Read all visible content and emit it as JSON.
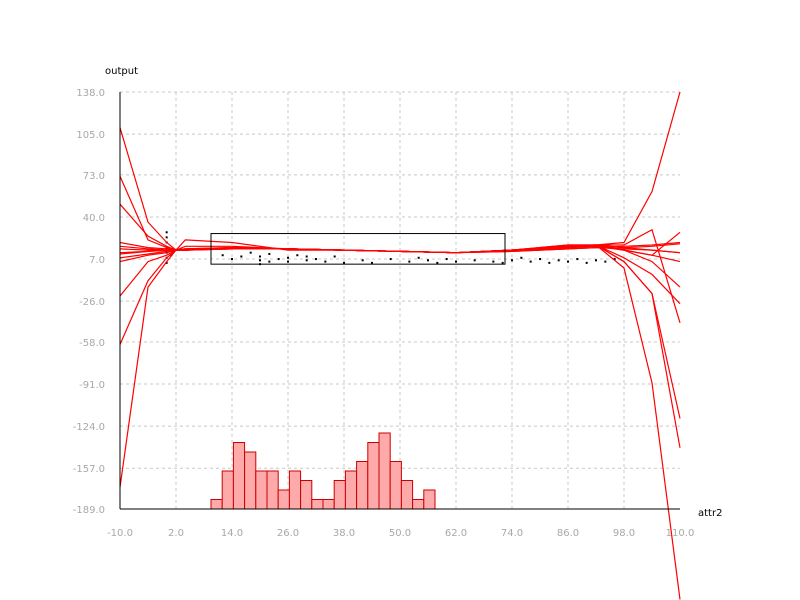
{
  "chart_data": {
    "type": "line",
    "x_axis_label": "attr2",
    "y_axis_label": "output",
    "x_ticks": [
      "-10.0",
      "2.0",
      "14.0",
      "26.0",
      "38.0",
      "50.0",
      "62.0",
      "74.0",
      "86.0",
      "98.0",
      "110.0"
    ],
    "y_ticks": [
      "138.0",
      "105.0",
      "73.0",
      "40.0",
      "7.0",
      "-26.0",
      "-58.0",
      "-91.0",
      "-124.0",
      "-157.0",
      "-189.0"
    ],
    "xlim": [
      -10,
      110
    ],
    "ylim": [
      -189,
      138
    ],
    "grid": true,
    "colors": {
      "line": "#ff0000",
      "bar_fill": "#ffaaaa",
      "bar_stroke": "#cc0000",
      "points": "#000000",
      "grid": "#c8c8c8"
    },
    "x_points": [
      -10,
      -4,
      0,
      2,
      4,
      14,
      26,
      38,
      50,
      62,
      74,
      86,
      92,
      98,
      104,
      110
    ],
    "series": [
      {
        "values": [
          110,
          36,
          20,
          14,
          14,
          16,
          15,
          14,
          13,
          12,
          14,
          17,
          18,
          14,
          5,
          -15
        ]
      },
      {
        "values": [
          72,
          22,
          16,
          14,
          14,
          16,
          15,
          14,
          13,
          12,
          14,
          17,
          18,
          8,
          -5,
          -28
        ]
      },
      {
        "values": [
          20,
          16,
          15,
          14,
          14,
          16,
          15,
          14,
          13,
          12,
          14,
          17,
          18,
          16,
          14,
          12
        ]
      },
      {
        "values": [
          17,
          15,
          14,
          14,
          15,
          16,
          15,
          14,
          13,
          12,
          14,
          16,
          17,
          16,
          17,
          19
        ]
      },
      {
        "values": [
          11,
          13,
          14,
          14,
          15,
          15,
          15,
          14,
          13,
          12,
          13,
          15,
          16,
          15,
          14,
          12
        ]
      },
      {
        "values": [
          8,
          11,
          13,
          14,
          14,
          15,
          15,
          14,
          13,
          12,
          13,
          15,
          16,
          17,
          18,
          20
        ]
      },
      {
        "values": [
          5,
          10,
          12,
          14,
          14,
          15,
          15,
          14,
          13,
          12,
          14,
          16,
          17,
          14,
          10,
          5
        ]
      },
      {
        "values": [
          -22,
          5,
          10,
          14,
          22,
          20,
          14,
          14,
          13,
          12,
          14,
          17,
          18,
          14,
          10,
          28
        ]
      },
      {
        "values": [
          -60,
          -10,
          8,
          14,
          17,
          17,
          15,
          14,
          13,
          12,
          14,
          17,
          18,
          18,
          30,
          -43
        ]
      },
      {
        "values": [
          -172,
          -15,
          5,
          14,
          15,
          16,
          15,
          14,
          13,
          12,
          14,
          18,
          18,
          5,
          -20,
          -118
        ]
      },
      {
        "values": [
          50,
          25,
          17,
          14,
          14,
          16,
          15,
          14,
          13,
          12,
          14,
          18,
          18,
          20,
          60,
          138
        ]
      },
      {
        "values": [
          15,
          14,
          14,
          14,
          14,
          16,
          15,
          14,
          13,
          12,
          14,
          16,
          18,
          5,
          -20,
          -141
        ]
      },
      {
        "values": [
          12,
          13,
          14,
          14,
          14,
          15,
          15,
          14,
          13,
          12,
          14,
          16,
          18,
          0,
          -90,
          -260
        ]
      }
    ],
    "histogram": {
      "bin_start": 9.5,
      "bin_width": 2.4,
      "counts": [
        1,
        4,
        7,
        6,
        4,
        4,
        2,
        4,
        3,
        1,
        1,
        3,
        4,
        5,
        7,
        8,
        5,
        3,
        1,
        2
      ]
    },
    "points": [
      [
        0,
        28
      ],
      [
        0,
        24
      ],
      [
        0,
        20
      ],
      [
        0,
        16
      ],
      [
        0,
        12
      ],
      [
        0,
        8
      ],
      [
        0,
        4
      ],
      [
        1,
        10
      ],
      [
        -1,
        14
      ],
      [
        12,
        10
      ],
      [
        14,
        7
      ],
      [
        16,
        9
      ],
      [
        18,
        12
      ],
      [
        20,
        6
      ],
      [
        20,
        3
      ],
      [
        20,
        9
      ],
      [
        22,
        5
      ],
      [
        22,
        11
      ],
      [
        24,
        7
      ],
      [
        26,
        5
      ],
      [
        26,
        8
      ],
      [
        28,
        10
      ],
      [
        30,
        6
      ],
      [
        30,
        9
      ],
      [
        32,
        7
      ],
      [
        34,
        5
      ],
      [
        36,
        9
      ],
      [
        38,
        4
      ],
      [
        42,
        6
      ],
      [
        44,
        4
      ],
      [
        48,
        7
      ],
      [
        52,
        5
      ],
      [
        54,
        8
      ],
      [
        56,
        6
      ],
      [
        58,
        4
      ],
      [
        60,
        7
      ],
      [
        62,
        5
      ],
      [
        66,
        6
      ],
      [
        70,
        5
      ],
      [
        72,
        4
      ],
      [
        74,
        6
      ],
      [
        76,
        8
      ],
      [
        78,
        5
      ],
      [
        80,
        7
      ],
      [
        82,
        4
      ],
      [
        84,
        6
      ],
      [
        86,
        5
      ],
      [
        88,
        7
      ],
      [
        90,
        4
      ],
      [
        92,
        6
      ],
      [
        94,
        5
      ],
      [
        96,
        7
      ]
    ],
    "selection": {
      "x_range": [
        9.5,
        72.5
      ],
      "y_range": [
        3,
        27
      ]
    }
  }
}
